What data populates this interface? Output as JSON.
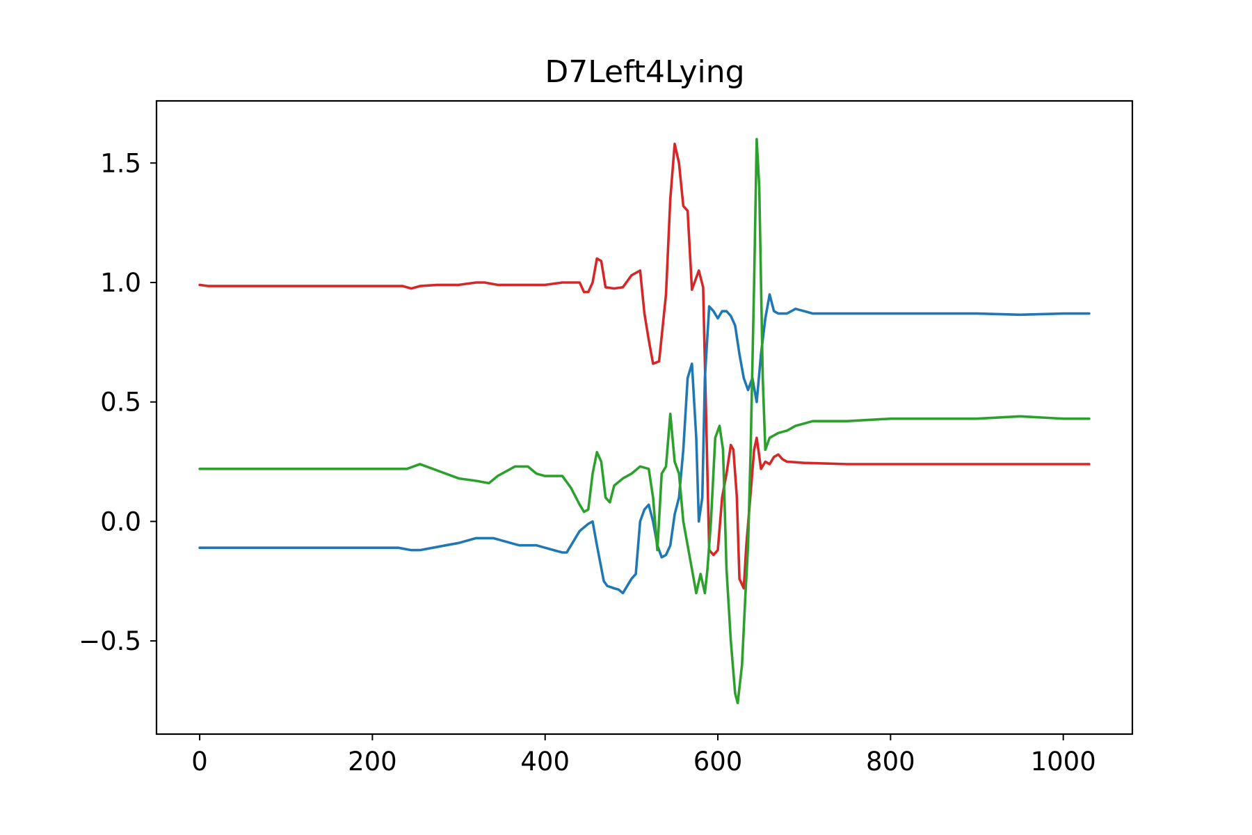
{
  "chart_data": {
    "type": "line",
    "title": "D7Left4Lying",
    "xlabel": "",
    "ylabel": "",
    "xlim": [
      -50,
      1080
    ],
    "ylim": [
      -0.89,
      1.76
    ],
    "x_ticks": [
      0,
      200,
      400,
      600,
      800,
      1000
    ],
    "x_tick_labels": [
      "0",
      "200",
      "400",
      "600",
      "800",
      "1000"
    ],
    "y_ticks": [
      -0.5,
      0.0,
      0.5,
      1.0,
      1.5
    ],
    "y_tick_labels": [
      "−0.5",
      "0.0",
      "0.5",
      "1.0",
      "1.5"
    ],
    "grid": false,
    "legend": "none",
    "series": [
      {
        "color": "#d62728",
        "points": [
          [
            0,
            0.99
          ],
          [
            10,
            0.985
          ],
          [
            50,
            0.985
          ],
          [
            100,
            0.985
          ],
          [
            150,
            0.985
          ],
          [
            200,
            0.985
          ],
          [
            235,
            0.985
          ],
          [
            245,
            0.975
          ],
          [
            255,
            0.985
          ],
          [
            275,
            0.99
          ],
          [
            290,
            0.99
          ],
          [
            300,
            0.99
          ],
          [
            320,
            1.0
          ],
          [
            330,
            1.0
          ],
          [
            345,
            0.99
          ],
          [
            370,
            0.99
          ],
          [
            400,
            0.99
          ],
          [
            420,
            1.0
          ],
          [
            440,
            1.0
          ],
          [
            445,
            0.96
          ],
          [
            450,
            0.96
          ],
          [
            455,
            1.0
          ],
          [
            460,
            1.1
          ],
          [
            465,
            1.09
          ],
          [
            470,
            0.98
          ],
          [
            480,
            0.975
          ],
          [
            490,
            0.98
          ],
          [
            500,
            1.03
          ],
          [
            510,
            1.05
          ],
          [
            515,
            0.87
          ],
          [
            520,
            0.76
          ],
          [
            525,
            0.66
          ],
          [
            532,
            0.67
          ],
          [
            540,
            0.95
          ],
          [
            545,
            1.35
          ],
          [
            550,
            1.58
          ],
          [
            555,
            1.5
          ],
          [
            560,
            1.32
          ],
          [
            565,
            1.3
          ],
          [
            570,
            0.97
          ],
          [
            578,
            1.05
          ],
          [
            583,
            0.98
          ],
          [
            590,
            -0.12
          ],
          [
            595,
            -0.14
          ],
          [
            600,
            -0.12
          ],
          [
            605,
            0.1
          ],
          [
            610,
            0.2
          ],
          [
            615,
            0.32
          ],
          [
            618,
            0.3
          ],
          [
            622,
            0.1
          ],
          [
            625,
            -0.24
          ],
          [
            630,
            -0.28
          ],
          [
            633,
            -0.1
          ],
          [
            638,
            0.12
          ],
          [
            642,
            0.3
          ],
          [
            645,
            0.35
          ],
          [
            650,
            0.22
          ],
          [
            655,
            0.25
          ],
          [
            660,
            0.24
          ],
          [
            665,
            0.27
          ],
          [
            670,
            0.28
          ],
          [
            675,
            0.26
          ],
          [
            680,
            0.25
          ],
          [
            700,
            0.245
          ],
          [
            750,
            0.24
          ],
          [
            800,
            0.24
          ],
          [
            850,
            0.24
          ],
          [
            900,
            0.24
          ],
          [
            950,
            0.24
          ],
          [
            1000,
            0.24
          ],
          [
            1030,
            0.24
          ]
        ]
      },
      {
        "color": "#1f77b4",
        "points": [
          [
            0,
            -0.11
          ],
          [
            50,
            -0.11
          ],
          [
            100,
            -0.11
          ],
          [
            150,
            -0.11
          ],
          [
            200,
            -0.11
          ],
          [
            230,
            -0.11
          ],
          [
            245,
            -0.12
          ],
          [
            255,
            -0.12
          ],
          [
            270,
            -0.11
          ],
          [
            285,
            -0.1
          ],
          [
            300,
            -0.09
          ],
          [
            320,
            -0.07
          ],
          [
            340,
            -0.07
          ],
          [
            350,
            -0.08
          ],
          [
            360,
            -0.09
          ],
          [
            370,
            -0.1
          ],
          [
            380,
            -0.1
          ],
          [
            390,
            -0.1
          ],
          [
            400,
            -0.11
          ],
          [
            410,
            -0.12
          ],
          [
            420,
            -0.13
          ],
          [
            425,
            -0.13
          ],
          [
            430,
            -0.1
          ],
          [
            440,
            -0.04
          ],
          [
            450,
            -0.01
          ],
          [
            455,
            0.0
          ],
          [
            460,
            -0.1
          ],
          [
            468,
            -0.25
          ],
          [
            472,
            -0.27
          ],
          [
            480,
            -0.28
          ],
          [
            485,
            -0.285
          ],
          [
            490,
            -0.3
          ],
          [
            500,
            -0.24
          ],
          [
            505,
            -0.22
          ],
          [
            510,
            0.0
          ],
          [
            515,
            0.05
          ],
          [
            520,
            0.07
          ],
          [
            525,
            0.0
          ],
          [
            530,
            -0.1
          ],
          [
            535,
            -0.15
          ],
          [
            540,
            -0.14
          ],
          [
            545,
            -0.1
          ],
          [
            550,
            0.03
          ],
          [
            555,
            0.1
          ],
          [
            560,
            0.3
          ],
          [
            565,
            0.6
          ],
          [
            570,
            0.66
          ],
          [
            575,
            0.35
          ],
          [
            578,
            0.0
          ],
          [
            582,
            0.1
          ],
          [
            585,
            0.6
          ],
          [
            590,
            0.9
          ],
          [
            595,
            0.88
          ],
          [
            600,
            0.85
          ],
          [
            605,
            0.88
          ],
          [
            610,
            0.88
          ],
          [
            615,
            0.86
          ],
          [
            620,
            0.82
          ],
          [
            625,
            0.7
          ],
          [
            630,
            0.6
          ],
          [
            635,
            0.55
          ],
          [
            640,
            0.6
          ],
          [
            645,
            0.5
          ],
          [
            650,
            0.7
          ],
          [
            655,
            0.85
          ],
          [
            660,
            0.95
          ],
          [
            665,
            0.88
          ],
          [
            670,
            0.87
          ],
          [
            680,
            0.87
          ],
          [
            690,
            0.89
          ],
          [
            700,
            0.88
          ],
          [
            710,
            0.87
          ],
          [
            750,
            0.87
          ],
          [
            800,
            0.87
          ],
          [
            850,
            0.87
          ],
          [
            900,
            0.87
          ],
          [
            950,
            0.865
          ],
          [
            1000,
            0.87
          ],
          [
            1030,
            0.87
          ]
        ]
      },
      {
        "color": "#2ca02c",
        "points": [
          [
            0,
            0.22
          ],
          [
            20,
            0.22
          ],
          [
            50,
            0.22
          ],
          [
            100,
            0.22
          ],
          [
            150,
            0.22
          ],
          [
            200,
            0.22
          ],
          [
            240,
            0.22
          ],
          [
            255,
            0.24
          ],
          [
            270,
            0.22
          ],
          [
            285,
            0.2
          ],
          [
            300,
            0.18
          ],
          [
            320,
            0.17
          ],
          [
            335,
            0.16
          ],
          [
            345,
            0.19
          ],
          [
            355,
            0.21
          ],
          [
            365,
            0.23
          ],
          [
            380,
            0.23
          ],
          [
            390,
            0.2
          ],
          [
            400,
            0.19
          ],
          [
            420,
            0.19
          ],
          [
            430,
            0.14
          ],
          [
            440,
            0.07
          ],
          [
            445,
            0.04
          ],
          [
            450,
            0.05
          ],
          [
            455,
            0.2
          ],
          [
            460,
            0.29
          ],
          [
            465,
            0.25
          ],
          [
            470,
            0.1
          ],
          [
            475,
            0.08
          ],
          [
            480,
            0.15
          ],
          [
            490,
            0.18
          ],
          [
            500,
            0.2
          ],
          [
            510,
            0.23
          ],
          [
            520,
            0.22
          ],
          [
            525,
            0.1
          ],
          [
            530,
            -0.12
          ],
          [
            535,
            0.2
          ],
          [
            540,
            0.23
          ],
          [
            545,
            0.45
          ],
          [
            550,
            0.25
          ],
          [
            555,
            0.2
          ],
          [
            560,
            0.0
          ],
          [
            565,
            -0.1
          ],
          [
            570,
            -0.2
          ],
          [
            575,
            -0.3
          ],
          [
            580,
            -0.22
          ],
          [
            585,
            -0.3
          ],
          [
            588,
            -0.2
          ],
          [
            592,
            0.0
          ],
          [
            597,
            0.35
          ],
          [
            602,
            0.4
          ],
          [
            606,
            0.3
          ],
          [
            610,
            -0.2
          ],
          [
            615,
            -0.5
          ],
          [
            620,
            -0.72
          ],
          [
            623,
            -0.76
          ],
          [
            628,
            -0.6
          ],
          [
            632,
            -0.3
          ],
          [
            635,
            -0.1
          ],
          [
            638,
            0.3
          ],
          [
            642,
            1.0
          ],
          [
            645,
            1.6
          ],
          [
            648,
            1.4
          ],
          [
            652,
            0.6
          ],
          [
            655,
            0.3
          ],
          [
            660,
            0.35
          ],
          [
            670,
            0.37
          ],
          [
            680,
            0.38
          ],
          [
            690,
            0.4
          ],
          [
            700,
            0.41
          ],
          [
            710,
            0.42
          ],
          [
            750,
            0.42
          ],
          [
            800,
            0.43
          ],
          [
            850,
            0.43
          ],
          [
            900,
            0.43
          ],
          [
            950,
            0.44
          ],
          [
            1000,
            0.43
          ],
          [
            1030,
            0.43
          ]
        ]
      }
    ]
  }
}
